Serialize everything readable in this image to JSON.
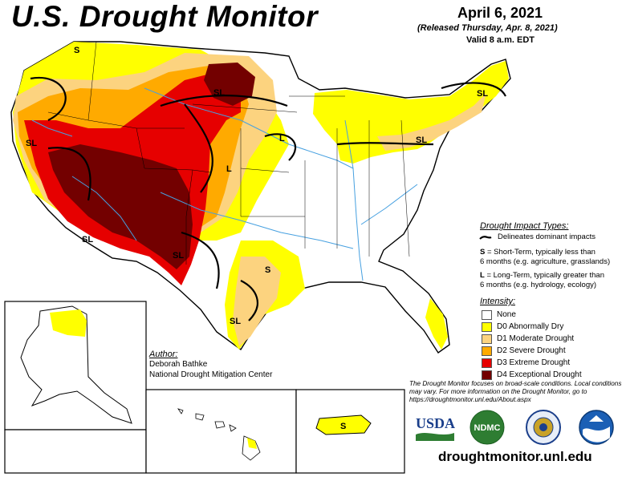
{
  "header": {
    "title": "U.S. Drought Monitor",
    "date": "April 6, 2021",
    "released": "(Released Thursday, Apr. 8, 2021)",
    "valid": "Valid 8 a.m. EDT"
  },
  "impacts": {
    "heading": "Drought Impact Types:",
    "delineates": "Delineates dominant impacts",
    "s_code": "S",
    "s_line1": "= Short-Term, typically less than",
    "s_line2": "6 months (e.g. agriculture, grasslands)",
    "l_code": "L",
    "l_line1": "= Long-Term, typically greater than",
    "l_line2": "6 months (e.g. hydrology, ecology)"
  },
  "intensity": {
    "heading": "Intensity:",
    "levels": [
      {
        "label": "None",
        "color": "#ffffff"
      },
      {
        "label": "D0 Abnormally Dry",
        "color": "#ffff00"
      },
      {
        "label": "D1 Moderate Drought",
        "color": "#fcd37f"
      },
      {
        "label": "D2 Severe Drought",
        "color": "#ffaa00"
      },
      {
        "label": "D3 Extreme Drought",
        "color": "#e60000"
      },
      {
        "label": "D4 Exceptional Drought",
        "color": "#730000"
      }
    ]
  },
  "author": {
    "heading": "Author:",
    "name": "Deborah Bathke",
    "org": "National Drought Mitigation Center"
  },
  "note": "The Drought Monitor focuses on broad-scale conditions. Local conditions may vary. For more information on the Drought Monitor, go to https://droughtmonitor.unl.edu/About.aspx",
  "logos": {
    "usda": "USDA",
    "ndmc": "NDMC"
  },
  "url": "droughtmonitor.unl.edu",
  "map_labels": {
    "s_northwest": "S",
    "sl_montana_nd": "SL",
    "sl_california": "SL",
    "l_nebraska": "L",
    "l_colorado": "L",
    "sl_arizona": "SL",
    "sl_new_mexico": "SL",
    "s_texas": "S",
    "sl_texas": "SL",
    "sl_michigan": "SL",
    "sl_new_england": "SL",
    "s_puerto_rico": "S"
  }
}
